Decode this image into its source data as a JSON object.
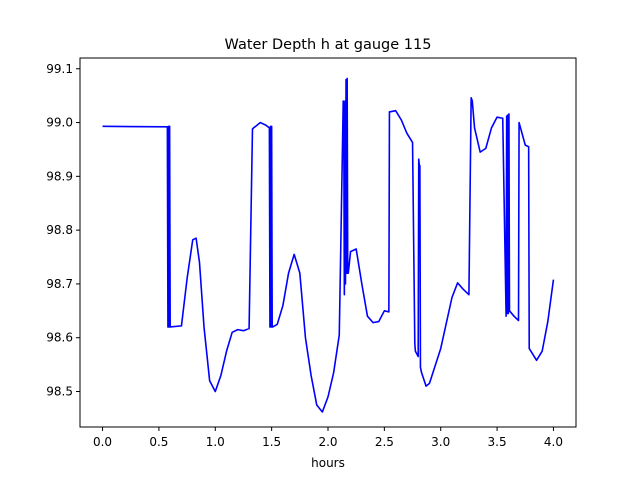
{
  "chart_data": {
    "type": "line",
    "title": "Water Depth h at gauge 115",
    "xlabel": "hours",
    "ylabel": "",
    "xlim": [
      -0.2,
      4.2
    ],
    "ylim": [
      98.434,
      99.12
    ],
    "grid": false,
    "x_ticks": [
      0.0,
      0.5,
      1.0,
      1.5,
      2.0,
      2.5,
      3.0,
      3.5,
      4.0
    ],
    "x_tick_labels": [
      "0.0",
      "0.5",
      "1.0",
      "1.5",
      "2.0",
      "2.5",
      "3.0",
      "3.5",
      "4.0"
    ],
    "y_ticks": [
      98.5,
      98.6,
      98.7,
      98.8,
      98.9,
      99.0,
      99.1
    ],
    "y_tick_labels": [
      "98.5",
      "98.6",
      "98.7",
      "98.8",
      "98.9",
      "99.0",
      "99.1"
    ],
    "series": [
      {
        "name": "",
        "color": "#0000ff",
        "x": [
          0.0,
          0.57,
          0.575,
          0.58,
          0.585,
          0.59,
          0.595,
          0.6,
          0.7,
          0.75,
          0.8,
          0.83,
          0.86,
          0.9,
          0.95,
          1.0,
          1.05,
          1.1,
          1.15,
          1.2,
          1.25,
          1.3,
          1.33,
          1.34,
          1.4,
          1.45,
          1.48,
          1.485,
          1.49,
          1.495,
          1.5,
          1.505,
          1.51,
          1.55,
          1.6,
          1.65,
          1.7,
          1.75,
          1.8,
          1.85,
          1.9,
          1.95,
          2.0,
          2.05,
          2.1,
          2.13,
          2.135,
          2.14,
          2.145,
          2.15,
          2.155,
          2.16,
          2.165,
          2.17,
          2.175,
          2.18,
          2.2,
          2.25,
          2.3,
          2.35,
          2.4,
          2.45,
          2.5,
          2.54,
          2.545,
          2.55,
          2.6,
          2.65,
          2.7,
          2.75,
          2.77,
          2.775,
          2.8,
          2.805,
          2.81,
          2.815,
          2.82,
          2.83,
          2.87,
          2.9,
          3.0,
          3.1,
          3.15,
          3.2,
          3.25,
          3.27,
          3.28,
          3.3,
          3.35,
          3.4,
          3.45,
          3.5,
          3.55,
          3.58,
          3.585,
          3.59,
          3.595,
          3.6,
          3.605,
          3.61,
          3.65,
          3.69,
          3.695,
          3.75,
          3.78,
          3.785,
          3.8,
          3.85,
          3.9,
          3.95,
          4.0
        ],
        "values": [
          98.993,
          98.992,
          98.992,
          98.62,
          98.993,
          98.62,
          98.993,
          98.62,
          98.622,
          98.71,
          98.782,
          98.785,
          98.74,
          98.62,
          98.52,
          98.5,
          98.53,
          98.575,
          98.61,
          98.615,
          98.613,
          98.617,
          98.988,
          98.99,
          99.0,
          98.995,
          98.99,
          98.62,
          98.993,
          98.62,
          98.993,
          98.62,
          98.62,
          98.625,
          98.66,
          98.72,
          98.755,
          98.72,
          98.6,
          98.53,
          98.475,
          98.462,
          98.49,
          98.535,
          98.605,
          98.975,
          99.04,
          99.0,
          98.68,
          99.04,
          98.7,
          99.08,
          98.72,
          99.082,
          98.72,
          98.72,
          98.76,
          98.765,
          98.7,
          98.64,
          98.628,
          98.63,
          98.65,
          98.648,
          99.02,
          99.02,
          99.022,
          99.005,
          98.98,
          98.963,
          98.59,
          98.575,
          98.565,
          98.932,
          98.92,
          98.92,
          98.545,
          98.535,
          98.51,
          98.515,
          98.58,
          98.675,
          98.702,
          98.69,
          98.68,
          99.046,
          99.04,
          98.99,
          98.945,
          98.952,
          98.99,
          99.01,
          99.008,
          98.64,
          99.012,
          98.645,
          99.014,
          98.645,
          99.016,
          98.65,
          98.64,
          98.632,
          99.0,
          98.958,
          98.955,
          98.58,
          98.575,
          98.558,
          98.575,
          98.63,
          98.708
        ]
      }
    ]
  }
}
